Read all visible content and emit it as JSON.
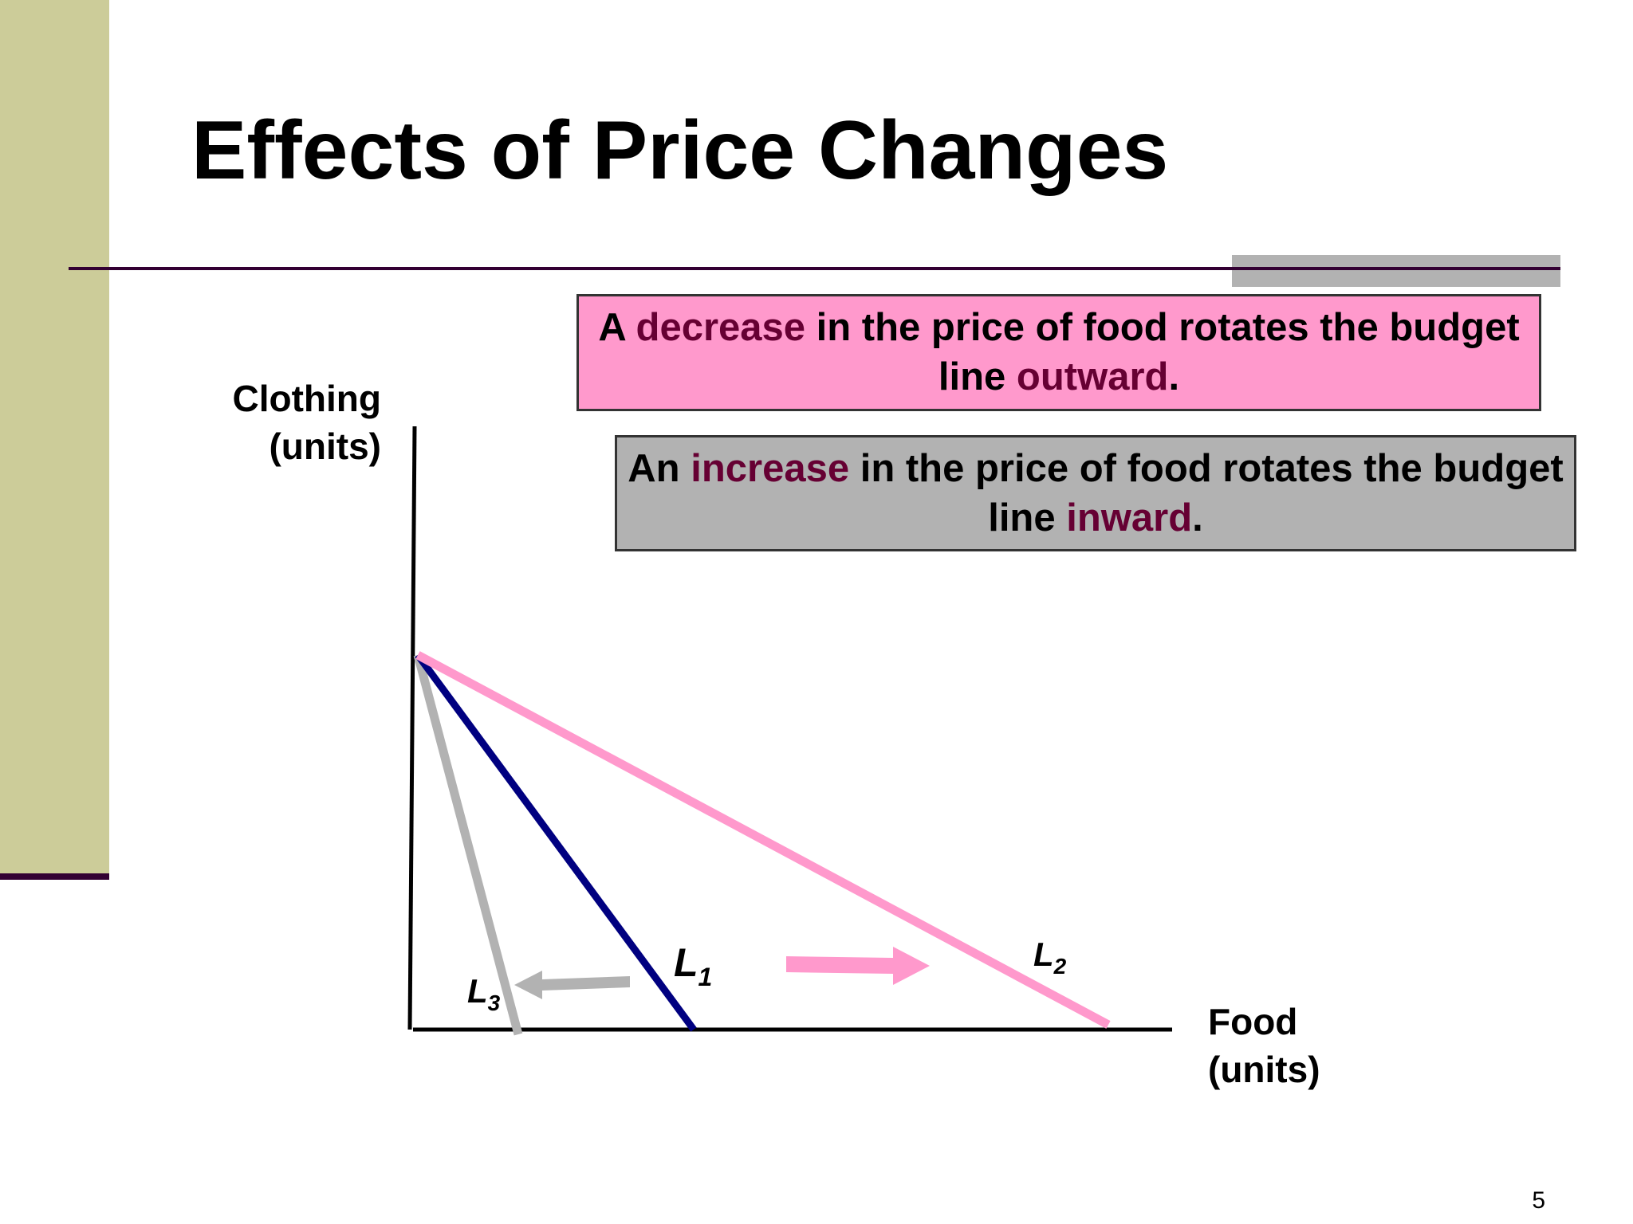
{
  "slide": {
    "title": "Effects of Price Changes",
    "page_number": "5"
  },
  "callouts": {
    "decrease": {
      "part1": "A ",
      "highlight1": "decrease",
      "part2": " in the price of food rotates the budget line ",
      "highlight2": "outward",
      "part3": "."
    },
    "increase": {
      "part1": "An ",
      "highlight1": "increase",
      "part2": " in the price of food rotates the budget line ",
      "highlight2": "inward",
      "part3": "."
    }
  },
  "axes": {
    "y_label_line1": "Clothing",
    "y_label_line2": "(units)",
    "x_label_line1": "Food",
    "x_label_line2": "(units)"
  },
  "lines": [
    {
      "id": "L1",
      "label": "L",
      "subscript": "1",
      "color": "#000080"
    },
    {
      "id": "L2",
      "label": "L",
      "subscript": "2",
      "color": "#ff99cc"
    },
    {
      "id": "L3",
      "label": "L",
      "subscript": "3",
      "color": "#b2b2b2"
    }
  ],
  "colors": {
    "sidebar": "#cccc99",
    "accent_dark": "#330033",
    "highlight_text": "#660033",
    "pink_box": "#ff99cc",
    "gray_box": "#b2b2b2"
  }
}
